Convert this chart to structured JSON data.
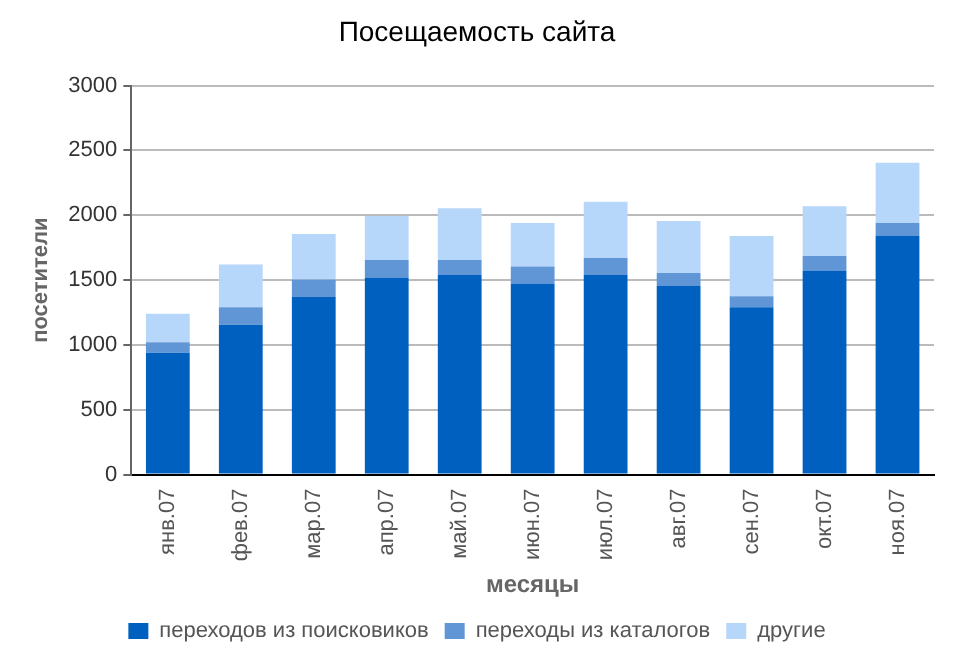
{
  "chart_data": {
    "type": "bar",
    "title": "Посещаемость сайта",
    "xlabel": "месяцы",
    "ylabel": "посетители",
    "categories": [
      "янв.07",
      "фев.07",
      "мар.07",
      "апр.07",
      "май.07",
      "июн.07",
      "июл.07",
      "авг.07",
      "сен.07",
      "окт.07",
      "ноя.07"
    ],
    "series": [
      {
        "name": "переходов из поисковиков",
        "color": "#0060c0",
        "values": [
          940,
          1155,
          1370,
          1520,
          1540,
          1470,
          1540,
          1455,
          1290,
          1570,
          1840
        ]
      },
      {
        "name": "переходы из каталогов",
        "color": "#6096d6",
        "values": [
          80,
          135,
          135,
          135,
          115,
          135,
          130,
          100,
          85,
          115,
          100
        ]
      },
      {
        "name": "другие",
        "color": "#b6d6fa",
        "values": [
          220,
          330,
          350,
          340,
          400,
          335,
          435,
          400,
          465,
          385,
          465
        ]
      }
    ],
    "stacked": true,
    "ylim": [
      0,
      3000
    ],
    "yticks": [
      0,
      500,
      1000,
      1500,
      2000,
      2500,
      3000
    ],
    "grid": "y",
    "legend": "bottom"
  }
}
